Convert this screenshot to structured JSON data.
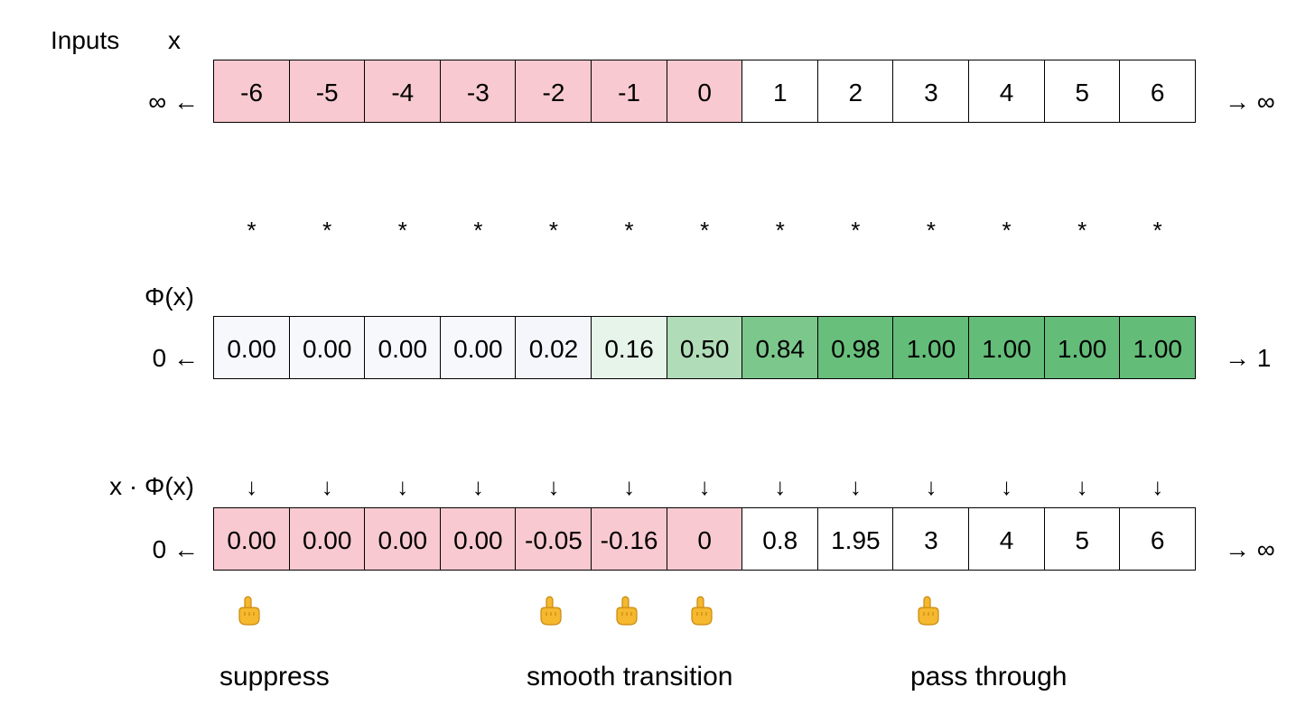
{
  "header": {
    "inputs_label": "Inputs",
    "x_label": "x"
  },
  "inputs": {
    "left_limit": "∞ ←",
    "right_limit": "→ ∞",
    "values": [
      "-6",
      "-5",
      "-4",
      "-3",
      "-2",
      "-1",
      "0",
      "1",
      "2",
      "3",
      "4",
      "5",
      "6"
    ],
    "fills": [
      "#f8c9d0",
      "#f8c9d0",
      "#f8c9d0",
      "#f8c9d0",
      "#f8c9d0",
      "#f8c9d0",
      "#f8c9d0",
      "#ffffff",
      "#ffffff",
      "#ffffff",
      "#ffffff",
      "#ffffff",
      "#ffffff"
    ]
  },
  "multiply_symbol": "*",
  "phi": {
    "label": "Φ(x)",
    "left_limit": "0 ←",
    "right_limit": "→ 1",
    "values": [
      "0.00",
      "0.00",
      "0.00",
      "0.00",
      "0.02",
      "0.16",
      "0.50",
      "0.84",
      "0.98",
      "1.00",
      "1.00",
      "1.00",
      "1.00"
    ],
    "fills": [
      "#f7f8fc",
      "#f7f8fc",
      "#f7f8fc",
      "#f7f8fc",
      "#f4f6fb",
      "#e6f4e9",
      "#b0dcb8",
      "#7cc78c",
      "#68bf7c",
      "#63bc78",
      "#63bc78",
      "#63bc78",
      "#63bc78"
    ]
  },
  "arrow_symbol": "↓",
  "product": {
    "label": "x · Φ(x)",
    "left_limit": "0 ←",
    "right_limit": "→ ∞",
    "values": [
      "0.00",
      "0.00",
      "0.00",
      "0.00",
      "-0.05",
      "-0.16",
      "0",
      "0.8",
      "1.95",
      "3",
      "4",
      "5",
      "6"
    ],
    "fills": [
      "#f8c9d0",
      "#f8c9d0",
      "#f8c9d0",
      "#f8c9d0",
      "#f8c9d0",
      "#f8c9d0",
      "#f8c9d0",
      "#ffffff",
      "#ffffff",
      "#ffffff",
      "#ffffff",
      "#ffffff",
      "#ffffff"
    ]
  },
  "pointer_icon": "pointing-hand-icon",
  "pointer_color": "#f5b82e",
  "pointed_columns": [
    0,
    4,
    5,
    6,
    9
  ],
  "captions": {
    "suppress": "suppress",
    "smooth_transition": "smooth transition",
    "pass_through": "pass through"
  }
}
